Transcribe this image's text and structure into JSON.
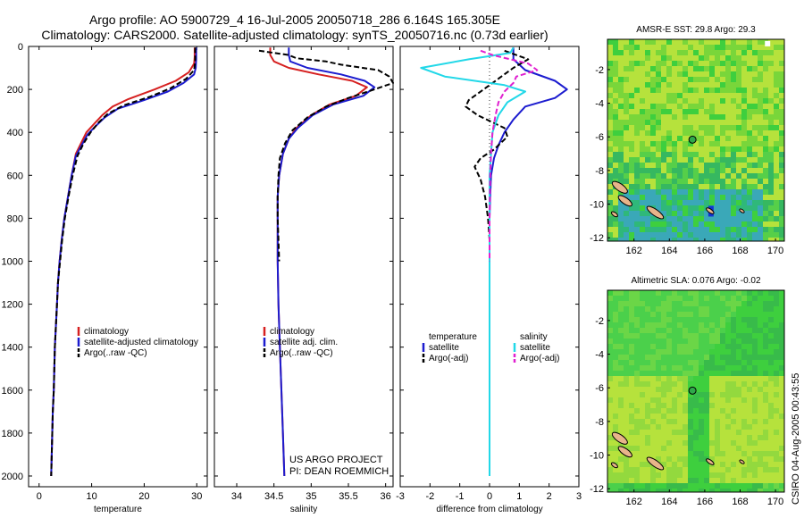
{
  "figure": {
    "title_line1": "Argo profile: AO 5900729_4 16-Jul-2005 20050718_286 6.164S 165.305E",
    "title_line2": "Climatology: CARS2000. Satellite-adjusted climatology: synTS_20050716.nc (0.73d earlier)",
    "credit_line1": "US ARGO PROJECT",
    "credit_line2": "PI: DEAN ROEMMICH",
    "timestamp": "CSIRO 04-Aug-2005 00:43:55",
    "colors": {
      "climatology": "#d62020",
      "satellite": "#1c1ccf",
      "argo": "#000000",
      "salinity_satellite": "#22d8e8",
      "salinity_argo": "#e020d0",
      "map_green": "#3ecf3e",
      "map_yellowgreen": "#b6e23c",
      "map_teal": "#3aa8b8",
      "land": "#e8b48a"
    }
  },
  "chart_data": [
    {
      "type": "line",
      "name": "temperature-profile",
      "xlabel": "temperature",
      "ylabel": "",
      "xlim": [
        -2,
        32
      ],
      "ylim": [
        2050,
        0
      ],
      "xticks": [
        0,
        10,
        20,
        30
      ],
      "yticks": [
        0,
        200,
        400,
        600,
        800,
        1000,
        1200,
        1400,
        1600,
        1800,
        2000
      ],
      "grid": false,
      "legend": {
        "placement": "bottom-right",
        "entries": [
          "climatology",
          "satellite-adjusted climatology",
          "Argo(..raw -QC)"
        ]
      },
      "series": [
        {
          "name": "climatology",
          "color": "#d62020",
          "dash": "solid",
          "points": [
            [
              29.6,
              5
            ],
            [
              29.6,
              50
            ],
            [
              29.5,
              80
            ],
            [
              28.5,
              120
            ],
            [
              26,
              160
            ],
            [
              22,
              200
            ],
            [
              17,
              245
            ],
            [
              14,
              280
            ],
            [
              12,
              320
            ],
            [
              10.5,
              360
            ],
            [
              9,
              400
            ],
            [
              8,
              450
            ],
            [
              7,
              500
            ],
            [
              6.2,
              600
            ],
            [
              5.5,
              700
            ],
            [
              4.8,
              800
            ],
            [
              4.3,
              900
            ],
            [
              3.9,
              1000
            ],
            [
              3.6,
              1100
            ],
            [
              3.4,
              1200
            ],
            [
              3.2,
              1300
            ],
            [
              3,
              1400
            ],
            [
              2.9,
              1500
            ],
            [
              2.8,
              1600
            ],
            [
              2.6,
              1700
            ],
            [
              2.5,
              1800
            ],
            [
              2.4,
              1900
            ],
            [
              2.3,
              2000
            ]
          ]
        },
        {
          "name": "satellite-adjusted climatology",
          "color": "#1c1ccf",
          "dash": "solid",
          "points": [
            [
              29.9,
              5
            ],
            [
              29.9,
              60
            ],
            [
              29.8,
              100
            ],
            [
              29.5,
              130
            ],
            [
              27.5,
              170
            ],
            [
              24.5,
              210
            ],
            [
              20,
              250
            ],
            [
              15,
              290
            ],
            [
              12.5,
              330
            ],
            [
              10.8,
              370
            ],
            [
              9.2,
              410
            ],
            [
              8.1,
              460
            ],
            [
              7,
              510
            ],
            [
              6.2,
              600
            ],
            [
              5.5,
              700
            ],
            [
              4.8,
              800
            ],
            [
              4.3,
              900
            ],
            [
              3.9,
              1000
            ],
            [
              3.6,
              1100
            ],
            [
              3.4,
              1200
            ],
            [
              3.2,
              1300
            ],
            [
              3,
              1400
            ],
            [
              2.9,
              1500
            ],
            [
              2.8,
              1600
            ],
            [
              2.6,
              1700
            ],
            [
              2.5,
              1800
            ],
            [
              2.4,
              1900
            ],
            [
              2.3,
              2000
            ]
          ]
        },
        {
          "name": "Argo(..raw -QC)",
          "color": "#000000",
          "dash": "dashed",
          "points": [
            [
              29.7,
              5
            ],
            [
              29.7,
              70
            ],
            [
              29.5,
              110
            ],
            [
              28,
              150
            ],
            [
              25,
              195
            ],
            [
              21,
              235
            ],
            [
              16,
              275
            ],
            [
              13,
              315
            ],
            [
              11.3,
              355
            ],
            [
              9.8,
              400
            ],
            [
              8.5,
              450
            ],
            [
              7.3,
              510
            ],
            [
              6.4,
              600
            ],
            [
              5.6,
              700
            ],
            [
              4.9,
              800
            ],
            [
              4.4,
              900
            ],
            [
              4,
              1000
            ],
            [
              3.6,
              1100
            ],
            [
              3.4,
              1200
            ],
            [
              3.2,
              1300
            ],
            [
              3,
              1400
            ],
            [
              2.9,
              1500
            ],
            [
              2.8,
              1600
            ],
            [
              2.6,
              1700
            ],
            [
              2.5,
              1800
            ],
            [
              2.4,
              1900
            ],
            [
              2.3,
              2000
            ]
          ]
        }
      ]
    },
    {
      "type": "line",
      "name": "salinity-profile",
      "xlabel": "salinity",
      "ylabel": "",
      "xlim": [
        33.7,
        36.1
      ],
      "ylim": [
        2050,
        0
      ],
      "xticks": [
        34,
        34.5,
        35,
        35.5,
        36
      ],
      "yticks": [],
      "grid": false,
      "legend": {
        "placement": "bottom-right",
        "entries": [
          "climatology",
          "satellite adj. clim.",
          "Argo(..raw -QC)"
        ]
      },
      "series": [
        {
          "name": "climatology",
          "color": "#d62020",
          "dash": "solid",
          "points": [
            [
              34.45,
              5
            ],
            [
              34.45,
              40
            ],
            [
              34.5,
              70
            ],
            [
              34.7,
              100
            ],
            [
              35.1,
              130
            ],
            [
              35.55,
              160
            ],
            [
              35.75,
              190
            ],
            [
              35.6,
              230
            ],
            [
              35.25,
              270
            ],
            [
              35,
              320
            ],
            [
              34.8,
              380
            ],
            [
              34.7,
              430
            ],
            [
              34.62,
              500
            ],
            [
              34.57,
              600
            ],
            [
              34.55,
              700
            ],
            [
              34.55,
              800
            ],
            [
              34.55,
              900
            ],
            [
              34.55,
              1000
            ],
            [
              34.56,
              1200
            ],
            [
              34.58,
              1400
            ],
            [
              34.6,
              1600
            ],
            [
              34.62,
              1800
            ],
            [
              34.64,
              2000
            ]
          ]
        },
        {
          "name": "satellite adj. clim.",
          "color": "#1c1ccf",
          "dash": "solid",
          "points": [
            [
              34.7,
              5
            ],
            [
              34.7,
              40
            ],
            [
              34.72,
              70
            ],
            [
              34.95,
              100
            ],
            [
              35.4,
              130
            ],
            [
              35.72,
              160
            ],
            [
              35.85,
              190
            ],
            [
              35.7,
              230
            ],
            [
              35.3,
              270
            ],
            [
              35.02,
              320
            ],
            [
              34.82,
              380
            ],
            [
              34.7,
              430
            ],
            [
              34.62,
              500
            ],
            [
              34.57,
              600
            ],
            [
              34.55,
              700
            ],
            [
              34.55,
              800
            ],
            [
              34.55,
              900
            ],
            [
              34.55,
              1000
            ],
            [
              34.56,
              1200
            ],
            [
              34.58,
              1400
            ],
            [
              34.6,
              1600
            ],
            [
              34.62,
              1800
            ],
            [
              34.64,
              2000
            ]
          ]
        },
        {
          "name": "Argo(..raw -QC)",
          "color": "#000000",
          "dash": "dashed",
          "points": [
            [
              34.3,
              20
            ],
            [
              34.5,
              30
            ],
            [
              34.7,
              40
            ],
            [
              34.8,
              55
            ],
            [
              35.2,
              70
            ],
            [
              35.4,
              85
            ],
            [
              35.9,
              110
            ],
            [
              36.05,
              140
            ],
            [
              36.1,
              170
            ],
            [
              35.85,
              200
            ],
            [
              35.5,
              240
            ],
            [
              35.2,
              280
            ],
            [
              34.95,
              330
            ],
            [
              34.75,
              390
            ],
            [
              34.65,
              450
            ],
            [
              34.58,
              520
            ],
            [
              34.56,
              600
            ],
            [
              34.55,
              700
            ],
            [
              34.55,
              800
            ],
            [
              34.56,
              900
            ],
            [
              34.57,
              1000
            ]
          ]
        }
      ]
    },
    {
      "type": "line",
      "name": "difference-profile",
      "xlabel": "difference from climatology",
      "ylabel": "",
      "xlim": [
        -3,
        3
      ],
      "ylim": [
        2050,
        0
      ],
      "xticks": [
        -3,
        -2,
        -1,
        0,
        1,
        2,
        3
      ],
      "yticks": [],
      "grid": false,
      "legend": {
        "placement": "bottom",
        "entries": [
          "temperature",
          "satellite",
          "Argo(-adj)",
          "salinity",
          "satellite",
          "Argo(-adj)"
        ]
      },
      "series": [
        {
          "name": "temperature satellite",
          "color": "#1c1ccf",
          "dash": "solid",
          "points": [
            [
              0.8,
              5
            ],
            [
              0.8,
              60
            ],
            [
              1.2,
              110
            ],
            [
              2.2,
              160
            ],
            [
              2.6,
              200
            ],
            [
              2.2,
              240
            ],
            [
              1.2,
              280
            ],
            [
              0.8,
              340
            ],
            [
              0.5,
              400
            ],
            [
              0.3,
              460
            ],
            [
              0.15,
              520
            ],
            [
              0.05,
              600
            ],
            [
              0.02,
              700
            ],
            [
              0,
              800
            ],
            [
              0,
              1000
            ],
            [
              0,
              1500
            ],
            [
              0,
              2000
            ]
          ]
        },
        {
          "name": "temperature Argo(-adj)",
          "color": "#000000",
          "dash": "dashed",
          "points": [
            [
              0.5,
              20
            ],
            [
              1.3,
              60
            ],
            [
              0.8,
              100
            ],
            [
              0.3,
              150
            ],
            [
              -0.2,
              200
            ],
            [
              -0.7,
              250
            ],
            [
              -0.8,
              280
            ],
            [
              -0.4,
              320
            ],
            [
              0.5,
              380
            ],
            [
              0.6,
              420
            ],
            [
              0.15,
              480
            ],
            [
              -0.3,
              520
            ],
            [
              -0.5,
              560
            ],
            [
              -0.3,
              620
            ],
            [
              -0.15,
              700
            ],
            [
              -0.05,
              800
            ],
            [
              0,
              900
            ],
            [
              0,
              1050
            ]
          ]
        },
        {
          "name": "salinity satellite",
          "color": "#22d8e8",
          "dash": "solid",
          "points": [
            [
              0.8,
              5
            ],
            [
              0.7,
              30
            ],
            [
              -0.7,
              60
            ],
            [
              -2.3,
              100
            ],
            [
              -1.5,
              140
            ],
            [
              0.5,
              180
            ],
            [
              1.2,
              210
            ],
            [
              0.6,
              260
            ],
            [
              0.3,
              320
            ],
            [
              0.1,
              400
            ],
            [
              0.05,
              500
            ],
            [
              0,
              600
            ],
            [
              0,
              800
            ],
            [
              0,
              1000
            ],
            [
              0,
              1500
            ],
            [
              0,
              2000
            ]
          ]
        },
        {
          "name": "salinity Argo(-adj)",
          "color": "#e020d0",
          "dash": "dashed",
          "points": [
            [
              -0.3,
              20
            ],
            [
              0.1,
              40
            ],
            [
              0.7,
              60
            ],
            [
              1.3,
              80
            ],
            [
              1.6,
              110
            ],
            [
              0.9,
              140
            ],
            [
              0.8,
              170
            ],
            [
              0.5,
              210
            ],
            [
              0.3,
              260
            ],
            [
              0.2,
              320
            ],
            [
              0.1,
              400
            ],
            [
              0.05,
              500
            ],
            [
              0.02,
              600
            ],
            [
              0,
              800
            ],
            [
              0,
              1000
            ]
          ]
        }
      ]
    },
    {
      "type": "heatmap",
      "name": "sst-map",
      "title": "AMSR-E SST: 29.8 Argo: 29.3",
      "xlim": [
        160.5,
        170.5
      ],
      "ylim": [
        -12.2,
        -0.2
      ],
      "xticks": [
        162,
        164,
        166,
        168,
        170
      ],
      "yticks": [
        -2,
        -4,
        -6,
        -8,
        -10,
        -12
      ],
      "grid": false,
      "profile_position": {
        "lon": 165.305,
        "lat": -6.164
      }
    },
    {
      "type": "heatmap",
      "name": "sla-map",
      "title": "Altimetric SLA: 0.076 Argo: -0.02",
      "xlim": [
        160.5,
        170.5
      ],
      "ylim": [
        -12.2,
        -0.2
      ],
      "xticks": [
        162,
        164,
        166,
        168,
        170
      ],
      "yticks": [
        -2,
        -4,
        -6,
        -8,
        -10,
        -12
      ],
      "grid": false,
      "profile_position": {
        "lon": 165.305,
        "lat": -6.164
      }
    }
  ]
}
